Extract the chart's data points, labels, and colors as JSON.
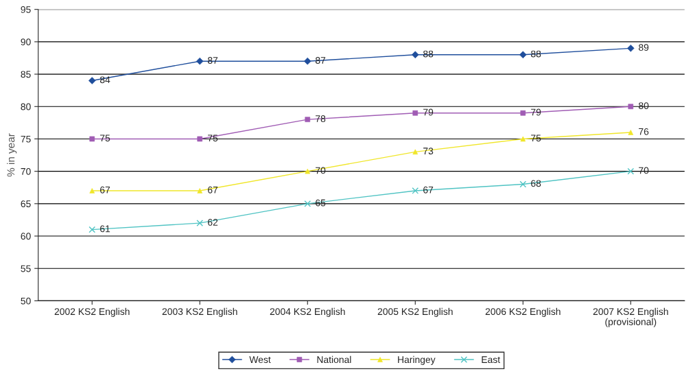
{
  "chart_data": {
    "type": "line",
    "ylabel": "% in year",
    "categories": [
      "2002 KS2 English",
      "2003 KS2 English",
      "2004 KS2 English",
      "2005 KS2 English",
      "2006 KS2 English",
      "2007 KS2 English\n(provisional)"
    ],
    "series": [
      {
        "name": "West",
        "color": "#1f4e9c",
        "marker": "diamond",
        "values": [
          84,
          87,
          87,
          88,
          88,
          89
        ]
      },
      {
        "name": "National",
        "color": "#a05cb4",
        "marker": "square",
        "values": [
          75,
          75,
          78,
          79,
          79,
          80
        ]
      },
      {
        "name": "Haringey",
        "color": "#f0e62a",
        "marker": "triangle",
        "values": [
          67,
          67,
          70,
          73,
          75,
          76
        ]
      },
      {
        "name": "East",
        "color": "#4fc3c3",
        "marker": "cross",
        "values": [
          61,
          62,
          65,
          67,
          68,
          70
        ]
      }
    ],
    "ylim": [
      50,
      95
    ],
    "yticks": [
      50,
      55,
      60,
      65,
      70,
      75,
      80,
      85,
      90,
      95
    ],
    "grid": "y",
    "legend": "bottom",
    "data_labels": true,
    "line_style": "solid"
  }
}
